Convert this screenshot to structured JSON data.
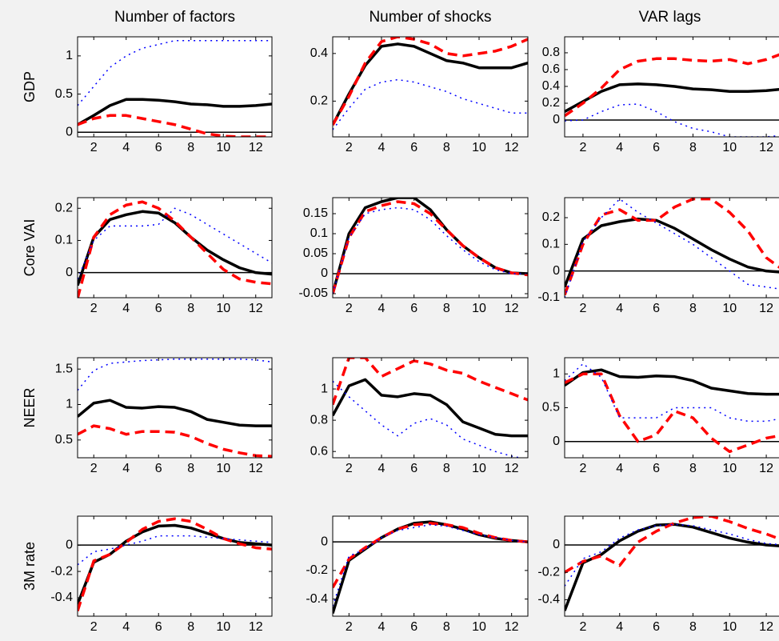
{
  "chart_data": [
    {
      "type": "line",
      "title": "Number of factors",
      "ylabel": "GDP",
      "x": [
        1,
        2,
        3,
        4,
        5,
        6,
        7,
        8,
        9,
        10,
        11,
        12,
        13
      ],
      "xlim": [
        1,
        13
      ],
      "xticks": [
        2,
        4,
        6,
        8,
        10,
        12
      ],
      "ylim": [
        -0.06,
        1.25
      ],
      "yticks": [
        0,
        0.5,
        1
      ],
      "series": [
        {
          "color": "#000000",
          "style": "solid",
          "values": [
            0.1,
            0.22,
            0.35,
            0.43,
            0.43,
            0.42,
            0.4,
            0.37,
            0.36,
            0.34,
            0.34,
            0.35,
            0.37
          ]
        },
        {
          "color": "#ff0000",
          "style": "dashed",
          "values": [
            0.1,
            0.18,
            0.22,
            0.22,
            0.18,
            0.14,
            0.1,
            0.04,
            -0.02,
            -0.05,
            -0.06,
            -0.06,
            -0.06
          ]
        },
        {
          "color": "#0000ff",
          "style": "dotted",
          "values": [
            0.35,
            0.6,
            0.85,
            1.0,
            1.1,
            1.15,
            1.2,
            1.2,
            1.2,
            1.2,
            1.2,
            1.2,
            1.2
          ]
        }
      ]
    },
    {
      "type": "line",
      "title": "Number of shocks",
      "x": [
        1,
        2,
        3,
        4,
        5,
        6,
        7,
        8,
        9,
        10,
        11,
        12,
        13
      ],
      "xlim": [
        1,
        13
      ],
      "xticks": [
        2,
        4,
        6,
        8,
        10,
        12
      ],
      "ylim": [
        0.05,
        0.47
      ],
      "yticks": [
        0.2,
        0.4
      ],
      "series": [
        {
          "color": "#000000",
          "style": "solid",
          "values": [
            0.1,
            0.23,
            0.35,
            0.43,
            0.44,
            0.43,
            0.4,
            0.37,
            0.36,
            0.34,
            0.34,
            0.34,
            0.36
          ]
        },
        {
          "color": "#ff0000",
          "style": "dashed",
          "values": [
            0.1,
            0.22,
            0.36,
            0.45,
            0.47,
            0.46,
            0.44,
            0.4,
            0.39,
            0.4,
            0.41,
            0.43,
            0.46
          ]
        },
        {
          "color": "#0000ff",
          "style": "dotted",
          "values": [
            0.08,
            0.17,
            0.25,
            0.28,
            0.29,
            0.28,
            0.26,
            0.24,
            0.21,
            0.19,
            0.17,
            0.15,
            0.15
          ]
        }
      ]
    },
    {
      "type": "line",
      "title": "VAR lags",
      "x": [
        1,
        2,
        3,
        4,
        5,
        6,
        7,
        8,
        9,
        10,
        11,
        12,
        13
      ],
      "xlim": [
        1,
        13
      ],
      "xticks": [
        2,
        4,
        6,
        8,
        10,
        12
      ],
      "ylim": [
        -0.2,
        0.99
      ],
      "yticks": [
        0,
        0.2,
        0.4,
        0.6,
        0.8
      ],
      "series": [
        {
          "color": "#000000",
          "style": "solid",
          "values": [
            0.1,
            0.22,
            0.34,
            0.42,
            0.43,
            0.42,
            0.4,
            0.37,
            0.36,
            0.34,
            0.34,
            0.35,
            0.37
          ]
        },
        {
          "color": "#ff0000",
          "style": "dashed",
          "values": [
            0.05,
            0.2,
            0.38,
            0.6,
            0.7,
            0.73,
            0.73,
            0.71,
            0.7,
            0.72,
            0.67,
            0.72,
            0.8
          ]
        },
        {
          "color": "#0000ff",
          "style": "dotted",
          "values": [
            -0.01,
            0.0,
            0.1,
            0.18,
            0.19,
            0.1,
            -0.02,
            -0.1,
            -0.14,
            -0.2,
            -0.2,
            -0.2,
            -0.18
          ]
        }
      ]
    },
    {
      "type": "line",
      "ylabel": "Core VAI",
      "x": [
        1,
        2,
        3,
        4,
        5,
        6,
        7,
        8,
        9,
        10,
        11,
        12,
        13
      ],
      "xlim": [
        1,
        13
      ],
      "xticks": [
        2,
        4,
        6,
        8,
        10,
        12
      ],
      "ylim": [
        -0.078,
        0.233
      ],
      "yticks": [
        0,
        0.1,
        0.2
      ],
      "series": [
        {
          "color": "#000000",
          "style": "solid",
          "values": [
            -0.04,
            0.11,
            0.165,
            0.18,
            0.19,
            0.185,
            0.155,
            0.11,
            0.07,
            0.04,
            0.015,
            0.0,
            -0.005
          ]
        },
        {
          "color": "#ff0000",
          "style": "dashed",
          "values": [
            -0.08,
            0.11,
            0.18,
            0.21,
            0.22,
            0.2,
            0.16,
            0.11,
            0.06,
            0.01,
            -0.02,
            -0.03,
            -0.035
          ]
        },
        {
          "color": "#0000ff",
          "style": "dotted",
          "values": [
            -0.02,
            0.1,
            0.145,
            0.145,
            0.145,
            0.15,
            0.2,
            0.18,
            0.15,
            0.12,
            0.09,
            0.06,
            0.03
          ]
        }
      ]
    },
    {
      "type": "line",
      "x": [
        1,
        2,
        3,
        4,
        5,
        6,
        7,
        8,
        9,
        10,
        11,
        12,
        13
      ],
      "xlim": [
        1,
        13
      ],
      "xticks": [
        2,
        4,
        6,
        8,
        10,
        12
      ],
      "ylim": [
        -0.06,
        0.19
      ],
      "yticks": [
        -0.05,
        0,
        0.05,
        0.1,
        0.15
      ],
      "series": [
        {
          "color": "#000000",
          "style": "solid",
          "values": [
            -0.05,
            0.1,
            0.165,
            0.18,
            0.19,
            0.19,
            0.16,
            0.11,
            0.07,
            0.04,
            0.015,
            0.002,
            0
          ]
        },
        {
          "color": "#ff0000",
          "style": "dashed",
          "values": [
            -0.05,
            0.09,
            0.155,
            0.17,
            0.18,
            0.175,
            0.15,
            0.11,
            0.07,
            0.04,
            0.015,
            0.002,
            -0.003
          ]
        },
        {
          "color": "#0000ff",
          "style": "dotted",
          "values": [
            -0.05,
            0.09,
            0.15,
            0.16,
            0.165,
            0.16,
            0.135,
            0.095,
            0.06,
            0.03,
            0.01,
            0.0,
            0.0
          ]
        }
      ]
    },
    {
      "type": "line",
      "x": [
        1,
        2,
        3,
        4,
        5,
        6,
        7,
        8,
        9,
        10,
        11,
        12,
        13
      ],
      "xlim": [
        1,
        13
      ],
      "xticks": [
        2,
        4,
        6,
        8,
        10,
        12
      ],
      "ylim": [
        -0.1,
        0.275
      ],
      "yticks": [
        -0.1,
        0,
        0.1,
        0.2
      ],
      "series": [
        {
          "color": "#000000",
          "style": "solid",
          "values": [
            -0.06,
            0.12,
            0.17,
            0.185,
            0.195,
            0.19,
            0.16,
            0.12,
            0.08,
            0.045,
            0.015,
            0.0,
            -0.005
          ]
        },
        {
          "color": "#ff0000",
          "style": "dashed",
          "values": [
            -0.09,
            0.1,
            0.21,
            0.23,
            0.19,
            0.19,
            0.24,
            0.27,
            0.27,
            0.22,
            0.15,
            0.05,
            0.0
          ]
        },
        {
          "color": "#0000ff",
          "style": "dotted",
          "values": [
            -0.1,
            0.11,
            0.2,
            0.27,
            0.22,
            0.18,
            0.14,
            0.1,
            0.05,
            0.0,
            -0.05,
            -0.06,
            -0.07
          ]
        }
      ]
    },
    {
      "type": "line",
      "ylabel": "NEER",
      "x": [
        1,
        2,
        3,
        4,
        5,
        6,
        7,
        8,
        9,
        10,
        11,
        12,
        13
      ],
      "xlim": [
        1,
        13
      ],
      "xticks": [
        2,
        4,
        6,
        8,
        10,
        12
      ],
      "ylim": [
        0.25,
        1.66
      ],
      "yticks": [
        0.5,
        1,
        1.5
      ],
      "series": [
        {
          "color": "#000000",
          "style": "solid",
          "values": [
            0.83,
            1.02,
            1.06,
            0.96,
            0.95,
            0.97,
            0.96,
            0.9,
            0.79,
            0.75,
            0.71,
            0.7,
            0.7
          ]
        },
        {
          "color": "#ff0000",
          "style": "dashed",
          "values": [
            0.58,
            0.7,
            0.66,
            0.58,
            0.62,
            0.62,
            0.61,
            0.55,
            0.45,
            0.37,
            0.32,
            0.28,
            0.27
          ]
        },
        {
          "color": "#0000ff",
          "style": "dotted",
          "values": [
            1.2,
            1.48,
            1.58,
            1.6,
            1.62,
            1.63,
            1.64,
            1.64,
            1.64,
            1.64,
            1.64,
            1.63,
            1.6
          ]
        }
      ]
    },
    {
      "type": "line",
      "x": [
        1,
        2,
        3,
        4,
        5,
        6,
        7,
        8,
        9,
        10,
        11,
        12,
        13
      ],
      "xlim": [
        1,
        13
      ],
      "xticks": [
        2,
        4,
        6,
        8,
        10,
        12
      ],
      "ylim": [
        0.56,
        1.2
      ],
      "yticks": [
        0.6,
        0.8,
        1
      ],
      "series": [
        {
          "color": "#000000",
          "style": "solid",
          "values": [
            0.83,
            1.02,
            1.06,
            0.96,
            0.95,
            0.97,
            0.96,
            0.9,
            0.79,
            0.75,
            0.71,
            0.7,
            0.7
          ]
        },
        {
          "color": "#ff0000",
          "style": "dashed",
          "values": [
            0.9,
            1.2,
            1.2,
            1.08,
            1.13,
            1.18,
            1.16,
            1.12,
            1.1,
            1.05,
            1.01,
            0.97,
            0.93
          ]
        },
        {
          "color": "#0000ff",
          "style": "dotted",
          "values": [
            1.05,
            0.95,
            0.86,
            0.77,
            0.7,
            0.78,
            0.81,
            0.77,
            0.68,
            0.64,
            0.6,
            0.57,
            0.55
          ]
        }
      ]
    },
    {
      "type": "line",
      "x": [
        1,
        2,
        3,
        4,
        5,
        6,
        7,
        8,
        9,
        10,
        11,
        12,
        13
      ],
      "xlim": [
        1,
        13
      ],
      "xticks": [
        2,
        4,
        6,
        8,
        10,
        12
      ],
      "ylim": [
        -0.24,
        1.24
      ],
      "yticks": [
        0,
        0.5,
        1
      ],
      "series": [
        {
          "color": "#000000",
          "style": "solid",
          "values": [
            0.83,
            1.02,
            1.06,
            0.96,
            0.95,
            0.97,
            0.96,
            0.9,
            0.79,
            0.75,
            0.71,
            0.7,
            0.7
          ]
        },
        {
          "color": "#ff0000",
          "style": "dashed",
          "values": [
            0.87,
            1.0,
            1.0,
            0.38,
            0.0,
            0.1,
            0.45,
            0.35,
            0.05,
            -0.15,
            -0.05,
            0.05,
            0.1
          ]
        },
        {
          "color": "#0000ff",
          "style": "dotted",
          "values": [
            0.9,
            1.15,
            0.95,
            0.35,
            0.35,
            0.35,
            0.5,
            0.5,
            0.5,
            0.35,
            0.3,
            0.3,
            0.35
          ]
        }
      ]
    },
    {
      "type": "line",
      "ylabel": "3M rate",
      "x": [
        1,
        2,
        3,
        4,
        5,
        6,
        7,
        8,
        9,
        10,
        11,
        12,
        13
      ],
      "xlim": [
        1,
        13
      ],
      "xticks": [
        2,
        4,
        6,
        8,
        10,
        12
      ],
      "ylim": [
        -0.54,
        0.22
      ],
      "yticks": [
        -0.4,
        -0.2,
        0
      ],
      "series": [
        {
          "color": "#000000",
          "style": "solid",
          "values": [
            -0.45,
            -0.13,
            -0.07,
            0.03,
            0.1,
            0.145,
            0.15,
            0.13,
            0.09,
            0.05,
            0.02,
            0.01,
            0.0
          ]
        },
        {
          "color": "#ff0000",
          "style": "dashed",
          "values": [
            -0.5,
            -0.12,
            -0.07,
            0.02,
            0.12,
            0.18,
            0.2,
            0.18,
            0.12,
            0.05,
            0.01,
            -0.02,
            -0.03
          ]
        },
        {
          "color": "#0000ff",
          "style": "dotted",
          "values": [
            -0.15,
            -0.05,
            -0.03,
            0.0,
            0.03,
            0.07,
            0.07,
            0.07,
            0.06,
            0.05,
            0.04,
            0.03,
            0.02
          ]
        }
      ]
    },
    {
      "type": "line",
      "x": [
        1,
        2,
        3,
        4,
        5,
        6,
        7,
        8,
        9,
        10,
        11,
        12,
        13
      ],
      "xlim": [
        1,
        13
      ],
      "xticks": [
        2,
        4,
        6,
        8,
        10,
        12
      ],
      "ylim": [
        -0.52,
        0.18
      ],
      "yticks": [
        -0.4,
        -0.2,
        0
      ],
      "series": [
        {
          "color": "#000000",
          "style": "solid",
          "values": [
            -0.5,
            -0.13,
            -0.05,
            0.03,
            0.09,
            0.13,
            0.14,
            0.12,
            0.09,
            0.05,
            0.025,
            0.01,
            0.0
          ]
        },
        {
          "color": "#ff0000",
          "style": "dashed",
          "values": [
            -0.32,
            -0.12,
            -0.04,
            0.03,
            0.09,
            0.12,
            0.13,
            0.12,
            0.1,
            0.06,
            0.03,
            0.01,
            0.0
          ]
        },
        {
          "color": "#0000ff",
          "style": "dotted",
          "values": [
            -0.45,
            -0.1,
            -0.05,
            0.03,
            0.08,
            0.1,
            0.12,
            0.11,
            0.08,
            0.05,
            0.03,
            0.01,
            0.0
          ]
        }
      ]
    },
    {
      "type": "line",
      "x": [
        1,
        2,
        3,
        4,
        5,
        6,
        7,
        8,
        9,
        10,
        11,
        12,
        13
      ],
      "xlim": [
        1,
        13
      ],
      "xticks": [
        2,
        4,
        6,
        8,
        10,
        12
      ],
      "ylim": [
        -0.52,
        0.21
      ],
      "yticks": [
        -0.4,
        -0.2,
        0
      ],
      "series": [
        {
          "color": "#000000",
          "style": "solid",
          "values": [
            -0.48,
            -0.13,
            -0.07,
            0.03,
            0.1,
            0.145,
            0.15,
            0.13,
            0.09,
            0.05,
            0.02,
            0.0,
            -0.01
          ]
        },
        {
          "color": "#ff0000",
          "style": "dashed",
          "values": [
            -0.2,
            -0.12,
            -0.08,
            -0.15,
            0.02,
            0.1,
            0.16,
            0.2,
            0.21,
            0.17,
            0.12,
            0.08,
            0.03
          ]
        },
        {
          "color": "#0000ff",
          "style": "dotted",
          "values": [
            -0.3,
            -0.1,
            -0.05,
            0.05,
            0.11,
            0.14,
            0.15,
            0.14,
            0.11,
            0.08,
            0.04,
            0.01,
            0.0
          ]
        }
      ]
    }
  ]
}
